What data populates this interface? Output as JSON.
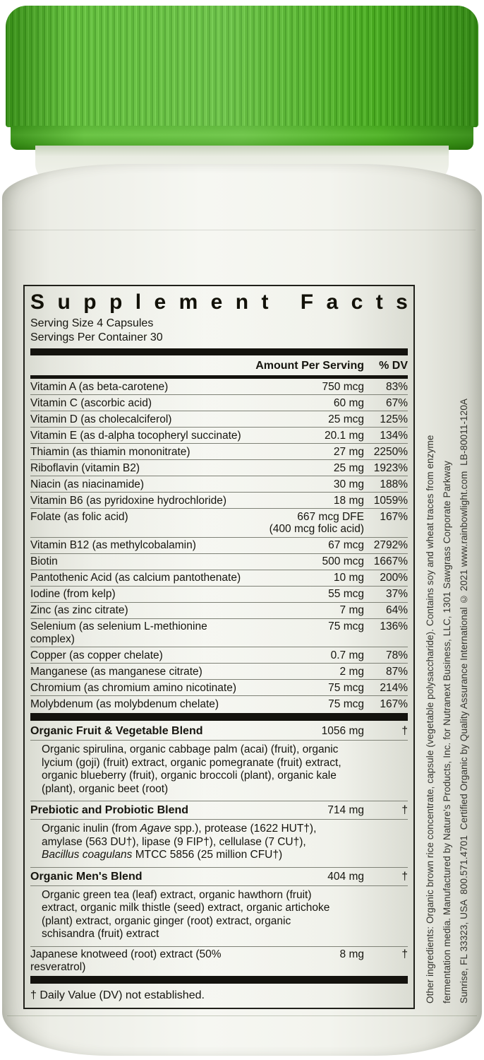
{
  "colors": {
    "cap_green": "#4cb023",
    "cap_band_green": "#46a91d",
    "bottle_white": "#f3f4ee",
    "panel_border": "#21211b",
    "bar_black": "#14130e",
    "rule_gray": "#7f8277"
  },
  "panel": {
    "title": "Supplement Facts",
    "serving_size": "Serving Size 4 Capsules",
    "servings_per_container": "Servings Per Container 30",
    "col_amount": "Amount Per Serving",
    "col_dv": "% DV",
    "rows": [
      {
        "name": "Vitamin A (as beta-carotene)",
        "amount": "750 mcg",
        "dv": "83%"
      },
      {
        "name": "Vitamin C (ascorbic acid)",
        "amount": "60 mg",
        "dv": "67%"
      },
      {
        "name": "Vitamin D (as cholecalciferol)",
        "amount": "25 mcg",
        "dv": "125%"
      },
      {
        "name": "Vitamin E (as d-alpha tocopheryl succinate)",
        "amount": "20.1 mg",
        "dv": "134%"
      },
      {
        "name": "Thiamin (as thiamin mononitrate)",
        "amount": "27 mg",
        "dv": "2250%"
      },
      {
        "name": "Riboflavin (vitamin B2)",
        "amount": "25 mg",
        "dv": "1923%"
      },
      {
        "name": "Niacin (as niacinamide)",
        "amount": "30 mg",
        "dv": "188%"
      },
      {
        "name": "Vitamin B6 (as pyridoxine hydrochloride)",
        "amount": "18 mg",
        "dv": "1059%"
      },
      {
        "name": "Folate (as folic acid)",
        "amount": "667 mcg DFE\n(400 mcg folic acid)",
        "dv": "167%"
      },
      {
        "name": "Vitamin B12 (as methylcobalamin)",
        "amount": "67 mcg",
        "dv": "2792%"
      },
      {
        "name": "Biotin",
        "amount": "500 mcg",
        "dv": "1667%"
      },
      {
        "name": "Pantothenic Acid (as calcium pantothenate)",
        "amount": "10 mg",
        "dv": "200%"
      },
      {
        "name": "Iodine (from kelp)",
        "amount": "55 mcg",
        "dv": "37%"
      },
      {
        "name": "Zinc (as zinc citrate)",
        "amount": "7 mg",
        "dv": "64%"
      },
      {
        "name": "Selenium (as selenium L-methionine complex)",
        "amount": "75 mcg",
        "dv": "136%"
      },
      {
        "name": "Copper (as copper chelate)",
        "amount": "0.7 mg",
        "dv": "78%"
      },
      {
        "name": "Manganese (as manganese citrate)",
        "amount": "2 mg",
        "dv": "87%"
      },
      {
        "name": "Chromium (as chromium amino nicotinate)",
        "amount": "75 mcg",
        "dv": "214%"
      },
      {
        "name": "Molybdenum (as molybdenum chelate)",
        "amount": "75 mcg",
        "dv": "167%"
      }
    ],
    "blends": [
      {
        "name": "Organic Fruit & Vegetable Blend",
        "amount": "1056 mg",
        "dv": "†",
        "desc": [
          {
            "t": "Organic spirulina, organic cabbage palm (acai) (fruit), organic lycium (goji) (fruit) extract, organic pomegranate (fruit) extract, organic blueberry (fruit), organic broccoli (plant), organic kale (plant), organic beet (root)"
          }
        ]
      },
      {
        "name": "Prebiotic and Probiotic Blend",
        "amount": "714 mg",
        "dv": "†",
        "desc": [
          {
            "t": "Organic inulin (from "
          },
          {
            "t": "Agave",
            "i": true
          },
          {
            "t": " spp.), protease (1622 HUT†), amylase (563 DU†), lipase (9 FIP†), cellulase (7 CU†), "
          },
          {
            "t": "Bacillus coagulans",
            "i": true
          },
          {
            "t": " MTCC 5856 (25 million CFU†)"
          }
        ]
      },
      {
        "name": "Organic Men's Blend",
        "amount": "404 mg",
        "dv": "†",
        "desc": [
          {
            "t": "Organic green tea (leaf) extract, organic hawthorn (fruit) extract, organic milk thistle (seed) extract, organic artichoke (plant) extract, organic ginger (root) extract, organic schisandra (fruit) extract"
          }
        ]
      }
    ],
    "extra_row": {
      "name": "Japanese knotweed (root) extract (50% resveratrol)",
      "amount": "8 mg",
      "dv": "†"
    },
    "footnote": "† Daily Value (DV) not established."
  },
  "side_text": {
    "lines": [
      "Other ingredients: Organic brown rice concentrate, capsule (vegetable polysaccharide). Contains soy and wheat traces from enzyme",
      "fermentation media. Manufactured by Nature's Products, Inc. for Nutranext Business, LLC, 1301 Sawgrass Corporate Parkway",
      "Sunrise, FL 33323, USA  800.571.4701  Certified Organic by Quality Assurance International © 2021 www.rainbowlight.com  LB-80011-120A"
    ]
  }
}
